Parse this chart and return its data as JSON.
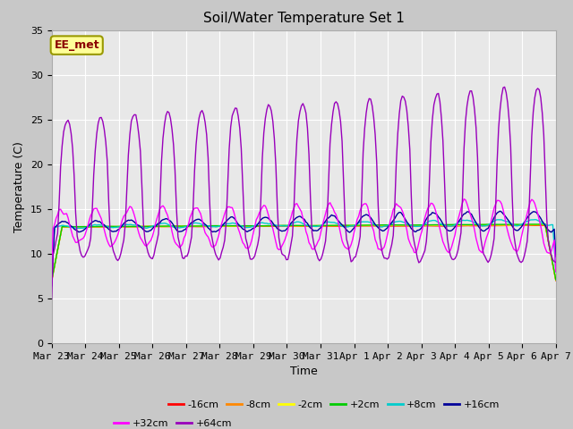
{
  "title": "Soil/Water Temperature Set 1",
  "xlabel": "Time",
  "ylabel": "Temperature (C)",
  "ylim": [
    0,
    35
  ],
  "yticks": [
    0,
    5,
    10,
    15,
    20,
    25,
    30,
    35
  ],
  "fig_bg_color": "#c8c8c8",
  "plot_bg_color": "#e8e8e8",
  "annotation_text": "EE_met",
  "annotation_box_color": "#ffff99",
  "annotation_text_color": "#8b0000",
  "annotation_edge_color": "#999900",
  "legend_entries": [
    "-16cm",
    "-8cm",
    "-2cm",
    "+2cm",
    "+8cm",
    "+16cm",
    "+32cm",
    "+64cm"
  ],
  "legend_colors": [
    "#ff0000",
    "#ff8800",
    "#ffff00",
    "#00cc00",
    "#00cccc",
    "#000099",
    "#ff00ff",
    "#9900bb"
  ],
  "x_tick_labels": [
    "Mar 23",
    "Mar 24",
    "Mar 25",
    "Mar 26",
    "Mar 27",
    "Mar 28",
    "Mar 29",
    "Mar 30",
    "Mar 31",
    "Apr 1",
    "Apr 2",
    "Apr 3",
    "Apr 4",
    "Apr 5",
    "Apr 6",
    "Apr 7"
  ],
  "num_points": 336,
  "days": 15,
  "base_temp": 13.0
}
